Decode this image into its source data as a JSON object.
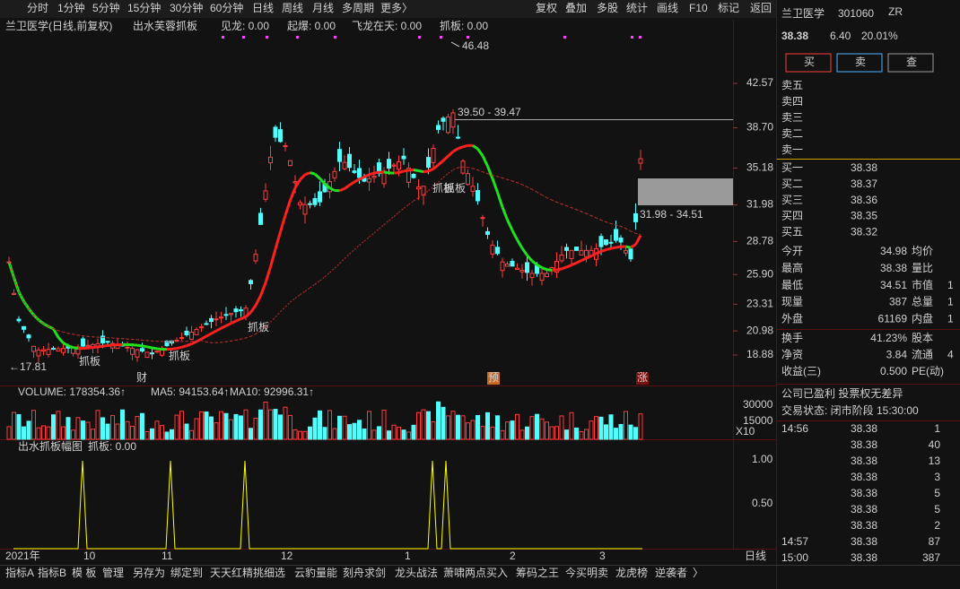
{
  "toolbar": {
    "periods": [
      "分时",
      "1分钟",
      "5分钟",
      "15分钟",
      "30分钟",
      "60分钟",
      "日线",
      "周线",
      "月线",
      "多周期",
      "更多〉"
    ],
    "tools": [
      "复权",
      "叠加",
      "多股",
      "统计",
      "画线",
      "F10",
      "标记",
      "返回"
    ]
  },
  "main_chart": {
    "stock_title": "兰卫医学(日线,前复权)",
    "indicator_name": "出水芙蓉抓板",
    "indicators": [
      "见龙: 0.00",
      "起爆: 0.00",
      "飞龙在天: 0.00",
      "抓板: 0.00"
    ],
    "high_label": "46.48",
    "low_label": "←17.81",
    "level_top": "39.50 - 39.47",
    "level_bottom": "31.98 - 34.51",
    "signals": [
      "抓板",
      "抓板",
      "抓板",
      "抓板",
      "抓板"
    ],
    "markers": [
      "财",
      "预",
      "涨"
    ],
    "price_axis": [
      "42.57",
      "38.70",
      "35.18",
      "31.98",
      "28.78",
      "25.90",
      "23.31",
      "20.98",
      "18.88"
    ]
  },
  "volume_chart": {
    "title": "VOLUME: 178354.36↑",
    "ma5": "MA5: 94153.64↑",
    "ma10": "MA10: 92996.31↑",
    "axis": [
      "30000",
      "15000"
    ],
    "unit": "X10"
  },
  "sub_chart": {
    "title": "出水抓板幅图",
    "indicator": "抓板: 0.00",
    "axis": [
      "1.00",
      "0.50"
    ]
  },
  "x_axis": [
    "2021年",
    "10",
    "11",
    "12",
    "1",
    "2",
    "3"
  ],
  "period_label": "日线",
  "bottom_tabs": [
    "指标A",
    "指标B",
    "模 板",
    "管理",
    "另存为",
    "绑定到",
    "天天红精挑细选",
    "云豹量能",
    "刻舟求剑",
    "龙头战法",
    "萧啸两点买入",
    "筹码之王",
    "今买明卖",
    "龙虎榜",
    "逆袭者",
    "〉"
  ],
  "quote": {
    "name": "兰卫医学",
    "code": "301060",
    "tag": "ZR",
    "price": "38.38",
    "change": "6.40",
    "change_pct": "20.01%",
    "buttons": [
      "买",
      "卖",
      "查"
    ],
    "sell": [
      "卖五",
      "卖四",
      "卖三",
      "卖二",
      "卖一"
    ],
    "buy": [
      [
        "买一",
        "38.38"
      ],
      [
        "买二",
        "38.37"
      ],
      [
        "买三",
        "38.36"
      ],
      [
        "买四",
        "38.35"
      ],
      [
        "买五",
        "38.32"
      ]
    ],
    "stats": [
      [
        "今开",
        "34.98",
        "均价",
        null
      ],
      [
        "最高",
        "38.38",
        "量比",
        null
      ],
      [
        "最低",
        "34.51",
        "市值",
        "1"
      ],
      [
        "现量",
        "387",
        "总量",
        "1"
      ],
      [
        "外盘",
        "61169",
        "内盘",
        "1"
      ]
    ],
    "stats2": [
      [
        "换手",
        "41.23%",
        "股本",
        null
      ],
      [
        "净资",
        "3.84",
        "流通",
        "4"
      ],
      [
        "收益(三)",
        "0.500",
        "PE(动)",
        null
      ]
    ],
    "info": "公司已盈利 投票权无差异",
    "status": "交易状态: 闭市阶段 15:30:00",
    "ticks": [
      [
        "14:56",
        "38.38",
        "1"
      ],
      [
        null,
        "38.38",
        "40"
      ],
      [
        null,
        "38.38",
        "13"
      ],
      [
        null,
        "38.38",
        "3"
      ],
      [
        null,
        "38.38",
        "5"
      ],
      [
        null,
        "38.38",
        "5"
      ],
      [
        null,
        "38.38",
        "2"
      ],
      [
        "14:57",
        "38.38",
        "87"
      ],
      [
        "15:00",
        "38.38",
        "387"
      ]
    ]
  }
}
